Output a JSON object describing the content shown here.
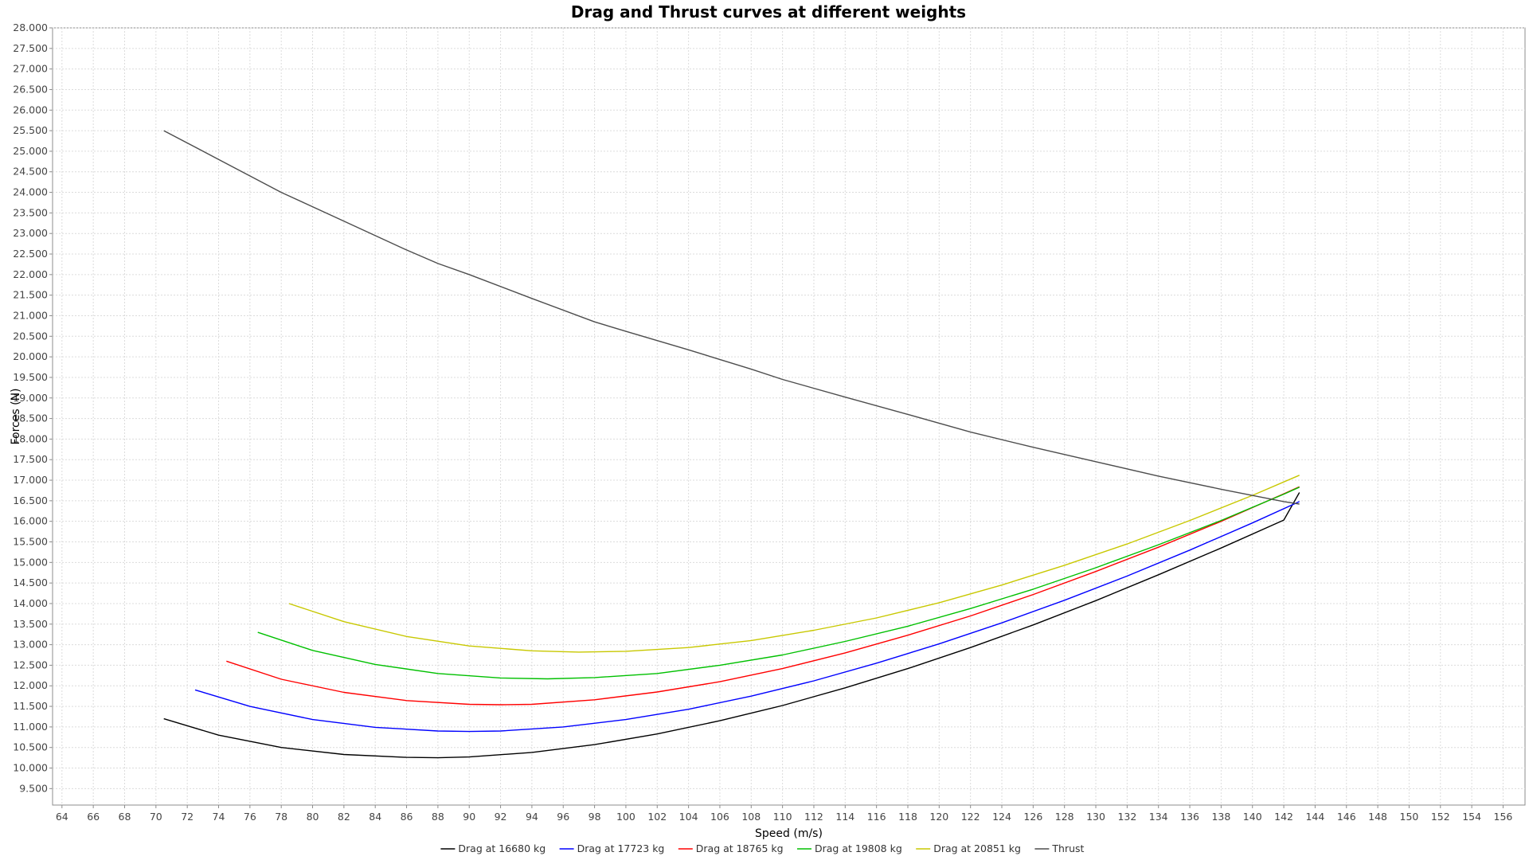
{
  "chart_data": {
    "type": "line",
    "title": "Drag and Thrust curves at different weights",
    "xlabel": "Speed (m/s)",
    "ylabel": "Forces (N)",
    "xlim": [
      63.4,
      157.4
    ],
    "ylim": [
      9.1,
      28.0
    ],
    "x_ticks": [
      "64",
      "66",
      "68",
      "70",
      "72",
      "74",
      "76",
      "78",
      "80",
      "82",
      "84",
      "86",
      "88",
      "90",
      "92",
      "94",
      "96",
      "98",
      "100",
      "102",
      "104",
      "106",
      "108",
      "110",
      "112",
      "114",
      "116",
      "118",
      "120",
      "122",
      "124",
      "126",
      "128",
      "130",
      "132",
      "134",
      "136",
      "138",
      "140",
      "142",
      "144",
      "146",
      "148",
      "150",
      "152",
      "154",
      "156"
    ],
    "y_ticks": [
      "9.500",
      "10.000",
      "10.500",
      "11.000",
      "11.500",
      "12.000",
      "12.500",
      "13.000",
      "13.500",
      "14.000",
      "14.500",
      "15.000",
      "15.500",
      "16.000",
      "16.500",
      "17.000",
      "17.500",
      "18.000",
      "18.500",
      "19.000",
      "19.500",
      "20.000",
      "20.500",
      "21.000",
      "21.500",
      "22.000",
      "22.500",
      "23.000",
      "23.500",
      "24.000",
      "24.500",
      "25.000",
      "25.500",
      "26.000",
      "26.500",
      "27.000",
      "27.500",
      "28.000"
    ],
    "grid": true,
    "legend_position": "bottom",
    "series": [
      {
        "name": "Drag at 16680 kg",
        "color": "#000000",
        "x": [
          70.5,
          74,
          78,
          82,
          86,
          88,
          90,
          94,
          98,
          102,
          106,
          110,
          114,
          118,
          122,
          126,
          130,
          134,
          138,
          142,
          143
        ],
        "y": [
          11.2,
          10.8,
          10.5,
          10.33,
          10.26,
          10.25,
          10.27,
          10.38,
          10.57,
          10.83,
          11.15,
          11.52,
          11.95,
          12.42,
          12.93,
          13.48,
          14.07,
          14.7,
          15.35,
          16.03,
          16.7
        ]
      },
      {
        "name": "Drag at 17723 kg",
        "color": "#0000ff",
        "x": [
          72.5,
          76,
          80,
          84,
          88,
          90,
          92,
          96,
          100,
          104,
          108,
          112,
          116,
          120,
          124,
          128,
          132,
          136,
          140,
          143
        ],
        "y": [
          11.9,
          11.5,
          11.18,
          10.99,
          10.9,
          10.89,
          10.9,
          11.0,
          11.18,
          11.43,
          11.75,
          12.12,
          12.55,
          13.02,
          13.53,
          14.08,
          14.67,
          15.3,
          15.96,
          16.48
        ]
      },
      {
        "name": "Drag at 18765 kg",
        "color": "#ff0000",
        "x": [
          74.5,
          78,
          82,
          86,
          90,
          92,
          94,
          98,
          102,
          106,
          110,
          114,
          118,
          122,
          126,
          130,
          134,
          138,
          142,
          143
        ],
        "y": [
          12.6,
          12.16,
          11.84,
          11.64,
          11.55,
          11.54,
          11.55,
          11.66,
          11.85,
          12.1,
          12.42,
          12.8,
          13.23,
          13.7,
          14.22,
          14.78,
          15.37,
          16.0,
          16.67,
          16.84
        ]
      },
      {
        "name": "Drag at 19808 kg",
        "color": "#00c000",
        "x": [
          76.5,
          80,
          84,
          88,
          92,
          95,
          98,
          102,
          106,
          110,
          114,
          118,
          122,
          126,
          130,
          134,
          138,
          142,
          143
        ],
        "y": [
          13.3,
          12.86,
          12.52,
          12.3,
          12.19,
          12.17,
          12.2,
          12.3,
          12.5,
          12.75,
          13.08,
          13.45,
          13.88,
          14.35,
          14.87,
          15.43,
          16.02,
          16.66,
          16.83
        ]
      },
      {
        "name": "Drag at 20851 kg",
        "color": "#c8c800",
        "x": [
          78.5,
          82,
          86,
          90,
          94,
          97,
          100,
          104,
          108,
          112,
          116,
          120,
          124,
          128,
          132,
          136,
          140,
          143
        ],
        "y": [
          14.0,
          13.56,
          13.2,
          12.97,
          12.85,
          12.82,
          12.84,
          12.93,
          13.1,
          13.35,
          13.65,
          14.02,
          14.45,
          14.93,
          15.45,
          16.02,
          16.63,
          17.12
        ]
      },
      {
        "name": "Thrust",
        "color": "#4d4d4d",
        "x": [
          70.5,
          74,
          78,
          82,
          86,
          88,
          90,
          94,
          98,
          100,
          104,
          108,
          110,
          114,
          118,
          122,
          126,
          130,
          134,
          138,
          142,
          143
        ],
        "y": [
          25.5,
          24.8,
          24.0,
          23.3,
          22.6,
          22.27,
          22.0,
          21.42,
          20.85,
          20.62,
          20.17,
          19.7,
          19.45,
          19.02,
          18.6,
          18.17,
          17.8,
          17.45,
          17.1,
          16.78,
          16.48,
          16.42
        ]
      }
    ]
  }
}
